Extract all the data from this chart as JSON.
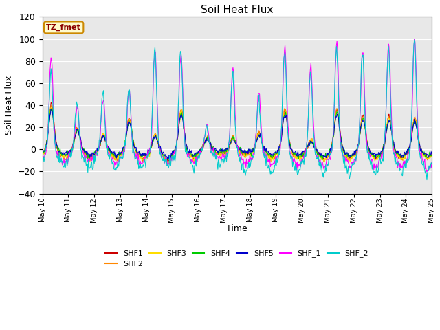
{
  "title": "Soil Heat Flux",
  "xlabel": "Time",
  "ylabel": "Soil Heat Flux",
  "ylim": [
    -40,
    120
  ],
  "background_color": "#ffffff",
  "plot_bg_color": "#e8e8e8",
  "series": [
    {
      "name": "SHF1",
      "color": "#cc0000"
    },
    {
      "name": "SHF2",
      "color": "#ff8800"
    },
    {
      "name": "SHF3",
      "color": "#ffdd00"
    },
    {
      "name": "SHF4",
      "color": "#00cc00"
    },
    {
      "name": "SHF5",
      "color": "#0000cc"
    },
    {
      "name": "SHF_1",
      "color": "#ff00ff"
    },
    {
      "name": "SHF_2",
      "color": "#00cccc"
    }
  ],
  "annotation_text": "TZ_fmet",
  "tick_labels": [
    "May 10",
    "May 11",
    "May 12",
    "May 13",
    "May 14",
    "May 15",
    "May 16",
    "May 17",
    "May 18",
    "May 19",
    "May 20",
    "May 21",
    "May 22",
    "May 23",
    "May 24",
    "May 25"
  ],
  "day_peak_amps_shf1": [
    40,
    18,
    12,
    28,
    12,
    35,
    10,
    10,
    15,
    35,
    8,
    35,
    30,
    30,
    28
  ],
  "day_peak_amps_shf2": [
    40,
    20,
    14,
    28,
    14,
    36,
    11,
    11,
    15,
    36,
    8,
    36,
    30,
    30,
    29
  ],
  "day_peak_amps_shf3": [
    38,
    19,
    13,
    26,
    13,
    34,
    10,
    10,
    14,
    34,
    8,
    34,
    29,
    29,
    27
  ],
  "day_peak_amps_shf4": [
    37,
    18,
    12,
    26,
    12,
    33,
    10,
    10,
    13,
    33,
    8,
    33,
    28,
    28,
    26
  ],
  "day_peak_amps_shf5": [
    36,
    18,
    12,
    25,
    12,
    32,
    9,
    9,
    13,
    32,
    7,
    32,
    27,
    27,
    26
  ],
  "day_peak_amps_shf_1": [
    83,
    38,
    46,
    55,
    90,
    89,
    22,
    75,
    52,
    93,
    74,
    95,
    92,
    96,
    100
  ],
  "day_peak_amps_shf_2": [
    70,
    43,
    50,
    55,
    90,
    89,
    20,
    68,
    45,
    90,
    70,
    90,
    88,
    92,
    101
  ],
  "day_trough_shf1": [
    -10,
    -12,
    -12,
    -12,
    -17,
    -12,
    -5,
    -7,
    -12,
    -12,
    -14,
    -13,
    -13,
    -13,
    -12
  ],
  "day_trough_shf2": [
    -12,
    -14,
    -14,
    -14,
    -19,
    -14,
    -7,
    -9,
    -14,
    -14,
    -16,
    -15,
    -15,
    -15,
    -14
  ],
  "day_trough_shf3": [
    -12,
    -14,
    -14,
    -14,
    -19,
    -14,
    -7,
    -9,
    -14,
    -14,
    -16,
    -15,
    -15,
    -15,
    -14
  ],
  "day_trough_shf4": [
    -8,
    -10,
    -10,
    -10,
    -15,
    -10,
    -4,
    -5,
    -10,
    -10,
    -12,
    -11,
    -11,
    -11,
    -10
  ],
  "day_trough_shf5": [
    -6,
    -8,
    -8,
    -8,
    -13,
    -8,
    -2,
    -3,
    -8,
    -8,
    -10,
    -9,
    -9,
    -9,
    -8
  ],
  "day_trough_shf_1": [
    -23,
    -18,
    -20,
    -20,
    -22,
    -20,
    -15,
    -22,
    -25,
    -25,
    -26,
    -25,
    -27,
    -26,
    -30
  ],
  "day_trough_shf_2": [
    -26,
    -29,
    -28,
    -28,
    -24,
    -24,
    -20,
    -35,
    -36,
    -36,
    -37,
    -36,
    -36,
    -35,
    -36
  ]
}
